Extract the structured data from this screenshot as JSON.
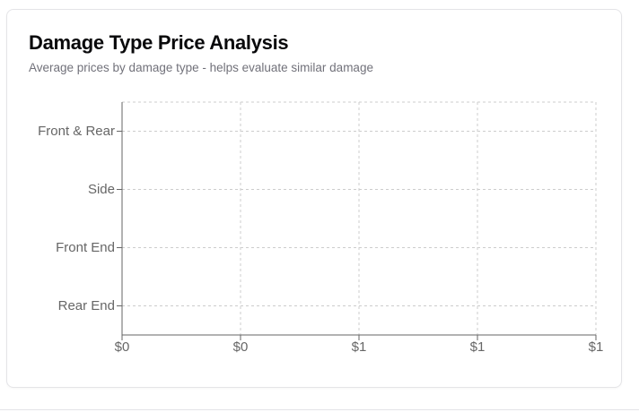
{
  "card": {
    "title": "Damage Type Price Analysis",
    "subtitle": "Average prices by damage type - helps evaluate similar damage"
  },
  "chart_data": {
    "type": "bar",
    "orientation": "horizontal",
    "categories": [
      "Front & Rear",
      "Side",
      "Front End",
      "Rear End"
    ],
    "values": [
      0,
      0,
      0,
      0
    ],
    "x_tick_labels": [
      "$0",
      "$0",
      "$1",
      "$1",
      "$1"
    ],
    "xlim": [
      0,
      1
    ],
    "grid": true,
    "legend": "none",
    "colors": {
      "grid": "#cccccc",
      "axis": "#666666",
      "tick_text": "#666666"
    }
  }
}
